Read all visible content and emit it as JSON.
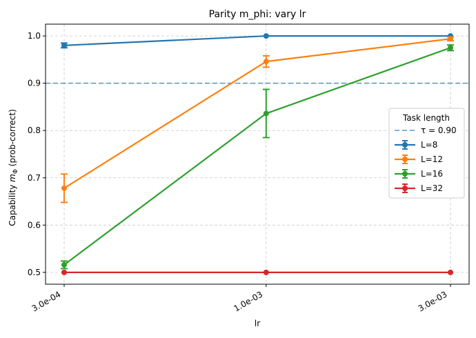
{
  "chart_data": {
    "type": "line",
    "title": "Parity m_phi: vary lr",
    "xlabel": "lr",
    "ylabel_prefix": "Capability ",
    "ylabel_symbol": "m",
    "ylabel_sub": "Φ",
    "ylabel_suffix": " (prob-correct)",
    "x_scale": "log",
    "x_ticks": [
      0.0003,
      0.001,
      0.003
    ],
    "x_tick_labels": [
      "3.0e-04",
      "1.0e-03",
      "3.0e-03"
    ],
    "ylim": [
      0.475,
      1.025
    ],
    "y_ticks": [
      0.5,
      0.6,
      0.7,
      0.8,
      0.9,
      1.0
    ],
    "y_tick_labels": [
      "0.5",
      "0.6",
      "0.7",
      "0.8",
      "0.9",
      "1.0"
    ],
    "grid": true,
    "legend_title": "Task length",
    "legend_position": "center-right",
    "threshold": {
      "label": "τ = 0.90",
      "value": 0.9,
      "color": "#1f77b4"
    },
    "x": [
      0.0003,
      0.001,
      0.003
    ],
    "series": [
      {
        "name": "L=8",
        "color": "#1f77b4",
        "values": [
          0.98,
          1.0,
          1.0
        ],
        "errors": [
          0.005,
          0.0,
          0.0
        ]
      },
      {
        "name": "L=12",
        "color": "#ff7f0e",
        "values": [
          0.678,
          0.946,
          0.994
        ],
        "errors": [
          0.03,
          0.012,
          0.004
        ]
      },
      {
        "name": "L=16",
        "color": "#2ca02c",
        "values": [
          0.516,
          0.836,
          0.975
        ],
        "errors": [
          0.008,
          0.051,
          0.006
        ]
      },
      {
        "name": "L=32",
        "color": "#d62728",
        "values": [
          0.5,
          0.5,
          0.5
        ],
        "errors": [
          0.0,
          0.0,
          0.0
        ]
      }
    ]
  }
}
